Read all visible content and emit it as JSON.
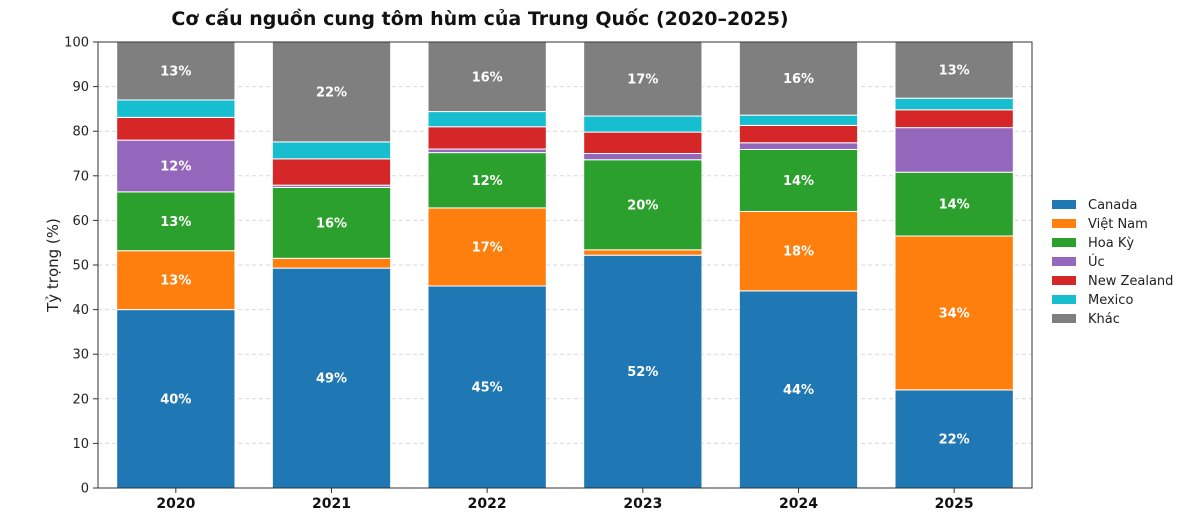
{
  "chart_data": {
    "type": "bar",
    "stacked": true,
    "title": "Cơ cấu nguồn cung tôm hùm của Trung Quốc (2020–2025)",
    "xlabel": "",
    "ylabel": "Tỷ trọng (%)",
    "ylim": [
      0,
      100
    ],
    "yticks": [
      "0",
      "10",
      "20",
      "30",
      "40",
      "50",
      "60",
      "70",
      "80",
      "90",
      "100"
    ],
    "categories": [
      "2020",
      "2021",
      "2022",
      "2023",
      "2024",
      "2025"
    ],
    "grid": true,
    "legend_position": "right",
    "series": [
      {
        "name": "Canada",
        "color": "#1f77b4",
        "values": [
          40,
          49.3,
          45.3,
          52.2,
          44.2,
          22
        ],
        "labels": [
          "40%",
          "49%",
          "45%",
          "52%",
          "44%",
          "22%"
        ]
      },
      {
        "name": "Việt Nam",
        "color": "#ff7f0e",
        "values": [
          13.2,
          2.2,
          17.5,
          1.2,
          17.8,
          34.5
        ],
        "labels": [
          "13%",
          "",
          "17%",
          "",
          "18%",
          "34%"
        ]
      },
      {
        "name": "Hoa Kỳ",
        "color": "#2ca02c",
        "values": [
          13.2,
          15.9,
          12.4,
          20.2,
          13.9,
          14.3
        ],
        "labels": [
          "13%",
          "16%",
          "12%",
          "20%",
          "14%",
          "14%"
        ]
      },
      {
        "name": "Úc",
        "color": "#9467bd",
        "values": [
          11.6,
          0.5,
          0.8,
          1.4,
          1.5,
          10
        ],
        "labels": [
          "12%",
          "",
          "",
          "",
          "",
          ""
        ]
      },
      {
        "name": "New Zealand",
        "color": "#d62728",
        "values": [
          5.1,
          5.9,
          5,
          4.8,
          3.9,
          4
        ],
        "labels": [
          "",
          "",
          "",
          "",
          "",
          ""
        ]
      },
      {
        "name": "Mexico",
        "color": "#17becf",
        "values": [
          3.9,
          3.8,
          3.4,
          3.6,
          2.3,
          2.6
        ],
        "labels": [
          "",
          "",
          "",
          "",
          "",
          ""
        ]
      },
      {
        "name": "Khác",
        "color": "#7f7f7f",
        "values": [
          13,
          22.4,
          15.6,
          16.6,
          16.4,
          12.6
        ],
        "labels": [
          "13%",
          "22%",
          "16%",
          "17%",
          "16%",
          "13%"
        ]
      }
    ]
  }
}
